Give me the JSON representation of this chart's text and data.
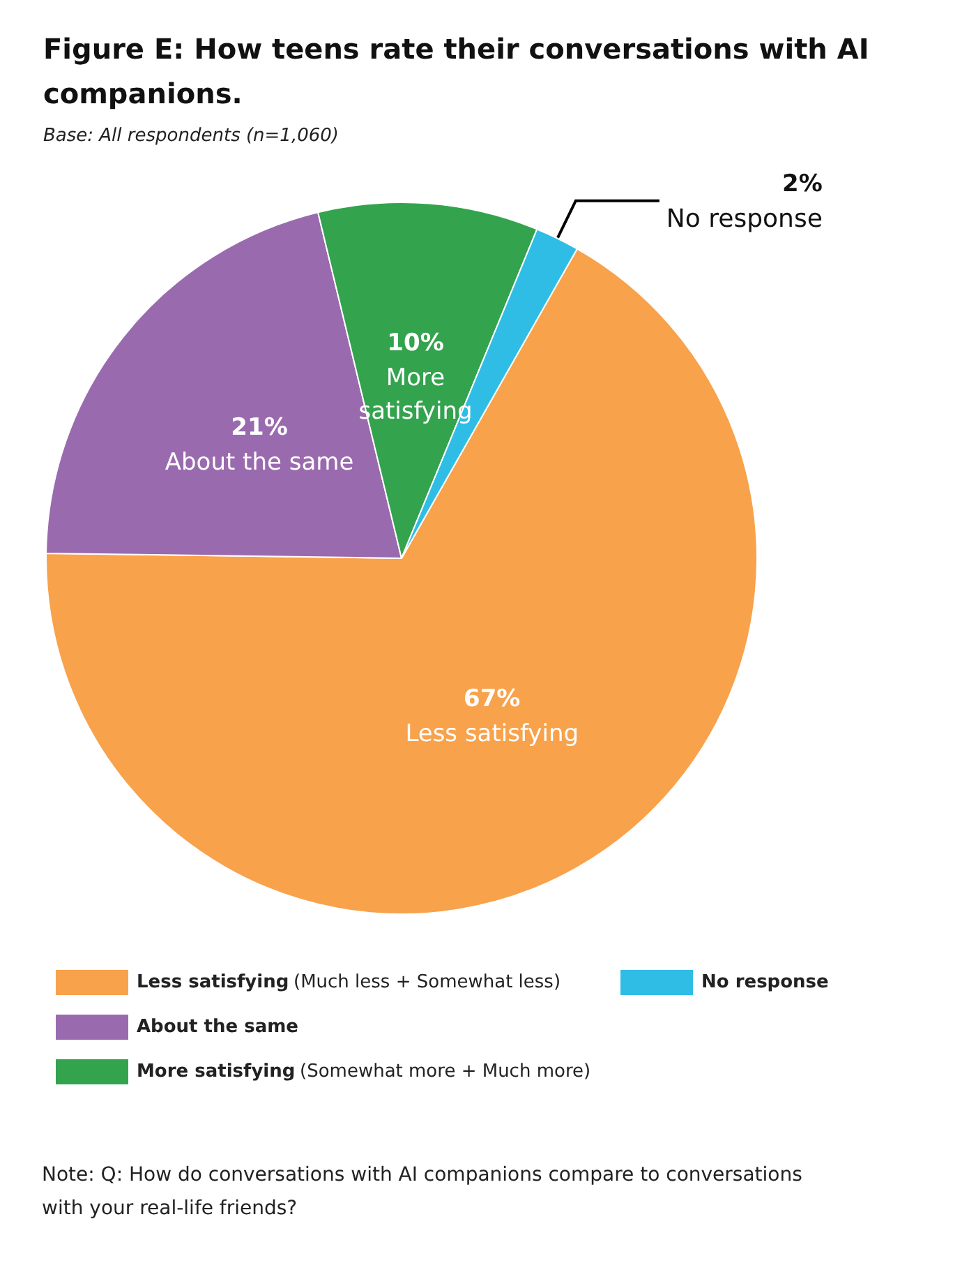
{
  "chart_data": {
    "type": "pie",
    "title": "Figure E: How teens rate their conversations with AI companions.",
    "subtitle": "Base: All respondents (n=1,060)",
    "categories": [
      "Less satisfying",
      "About the same",
      "More satisfying",
      "No response"
    ],
    "values": [
      67,
      21,
      10,
      2
    ],
    "value_labels": [
      "67%",
      "21%",
      "10%",
      "2%"
    ],
    "colors": [
      "#f8a24b",
      "#9a6aae",
      "#33a34e",
      "#2fbde6"
    ],
    "legend": "bottom",
    "annotations": [
      {
        "text": "(Much less + Somewhat less)",
        "x": "Less satisfying"
      },
      {
        "text": "(Somewhat more + Much more)",
        "x": "More satisfying"
      },
      "Note: Q: How do conversations with AI companions compare to conversations with your real-life friends?"
    ]
  }
}
